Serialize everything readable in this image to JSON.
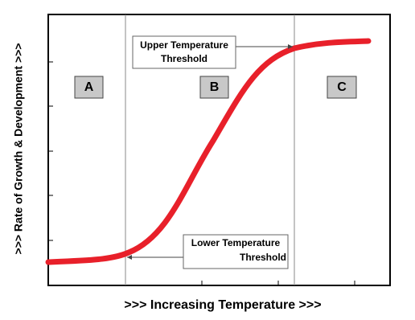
{
  "axes": {
    "x_label": ">>> Increasing Temperature >>>",
    "y_label": ">>> Rate of Growth & Development >>>"
  },
  "regions": [
    {
      "label": "A"
    },
    {
      "label": "B"
    },
    {
      "label": "C"
    }
  ],
  "annotations": {
    "upper": [
      "Upper Temperature",
      "Threshold"
    ],
    "lower": [
      "Lower Temperature",
      "Threshold"
    ]
  }
}
